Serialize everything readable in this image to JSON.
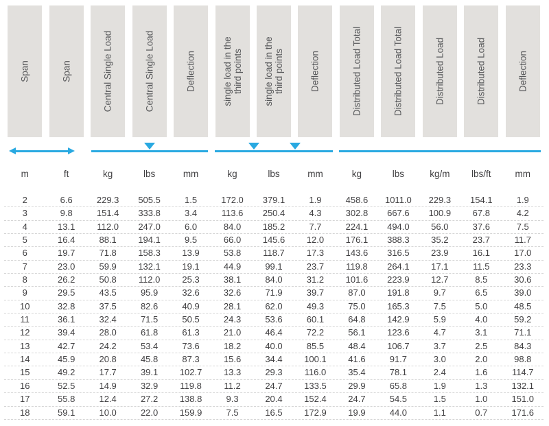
{
  "colors": {
    "accent_blue": "#29a9e1",
    "header_box_bg": "#e2e0dd",
    "header_text": "#57585a",
    "body_text": "#414042",
    "row_divider": "#d6d6d6"
  },
  "header": {
    "columns": [
      {
        "id": "span-m",
        "label": "Span"
      },
      {
        "id": "span-ft",
        "label": "Span"
      },
      {
        "id": "central-single-load-kg",
        "label": "Central Single Load"
      },
      {
        "id": "central-single-load-lbs",
        "label": "Central Single Load"
      },
      {
        "id": "central-deflection",
        "label": "Deflection"
      },
      {
        "id": "third-point-load-kg",
        "label": "single load in the\nthird points"
      },
      {
        "id": "third-point-load-lbs",
        "label": "single load in the\nthird points"
      },
      {
        "id": "third-point-deflection",
        "label": "Deflection"
      },
      {
        "id": "distributed-load-total-kg",
        "label": "Distributed Load Total"
      },
      {
        "id": "distributed-load-total-lbs",
        "label": "Distributed Load Total"
      },
      {
        "id": "distributed-load-kg-m",
        "label": "Distributed Load"
      },
      {
        "id": "distributed-load-lbs-ft",
        "label": "Distributed Load"
      },
      {
        "id": "distributed-deflection",
        "label": "Deflection"
      }
    ]
  },
  "diagram": {
    "span_arrow": "double-headed-arrow",
    "central_load_markers": 1,
    "third_point_load_markers": 2,
    "distributed_load_markers": 0
  },
  "units": [
    "m",
    "ft",
    "kg",
    "lbs",
    "mm",
    "kg",
    "lbs",
    "mm",
    "kg",
    "lbs",
    "kg/m",
    "lbs/ft",
    "mm"
  ],
  "table": {
    "rows": [
      [
        "2",
        "6.6",
        "229.3",
        "505.5",
        "1.5",
        "172.0",
        "379.1",
        "1.9",
        "458.6",
        "1011.0",
        "229.3",
        "154.1",
        "1.9"
      ],
      [
        "3",
        "9.8",
        "151.4",
        "333.8",
        "3.4",
        "113.6",
        "250.4",
        "4.3",
        "302.8",
        "667.6",
        "100.9",
        "67.8",
        "4.2"
      ],
      [
        "4",
        "13.1",
        "112.0",
        "247.0",
        "6.0",
        "84.0",
        "185.2",
        "7.7",
        "224.1",
        "494.0",
        "56.0",
        "37.6",
        "7.5"
      ],
      [
        "5",
        "16.4",
        "88.1",
        "194.1",
        "9.5",
        "66.0",
        "145.6",
        "12.0",
        "176.1",
        "388.3",
        "35.2",
        "23.7",
        "11.7"
      ],
      [
        "6",
        "19.7",
        "71.8",
        "158.3",
        "13.9",
        "53.8",
        "118.7",
        "17.3",
        "143.6",
        "316.5",
        "23.9",
        "16.1",
        "17.0"
      ],
      [
        "7",
        "23.0",
        "59.9",
        "132.1",
        "19.1",
        "44.9",
        "99.1",
        "23.7",
        "119.8",
        "264.1",
        "17.1",
        "11.5",
        "23.3"
      ],
      [
        "8",
        "26.2",
        "50.8",
        "112.0",
        "25.3",
        "38.1",
        "84.0",
        "31.2",
        "101.6",
        "223.9",
        "12.7",
        "8.5",
        "30.6"
      ],
      [
        "9",
        "29.5",
        "43.5",
        "95.9",
        "32.6",
        "32.6",
        "71.9",
        "39.7",
        "87.0",
        "191.8",
        "9.7",
        "6.5",
        "39.0"
      ],
      [
        "10",
        "32.8",
        "37.5",
        "82.6",
        "40.9",
        "28.1",
        "62.0",
        "49.3",
        "75.0",
        "165.3",
        "7.5",
        "5.0",
        "48.5"
      ],
      [
        "11",
        "36.1",
        "32.4",
        "71.5",
        "50.5",
        "24.3",
        "53.6",
        "60.1",
        "64.8",
        "142.9",
        "5.9",
        "4.0",
        "59.2"
      ],
      [
        "12",
        "39.4",
        "28.0",
        "61.8",
        "61.3",
        "21.0",
        "46.4",
        "72.2",
        "56.1",
        "123.6",
        "4.7",
        "3.1",
        "71.1"
      ],
      [
        "13",
        "42.7",
        "24.2",
        "53.4",
        "73.6",
        "18.2",
        "40.0",
        "85.5",
        "48.4",
        "106.7",
        "3.7",
        "2.5",
        "84.3"
      ],
      [
        "14",
        "45.9",
        "20.8",
        "45.8",
        "87.3",
        "15.6",
        "34.4",
        "100.1",
        "41.6",
        "91.7",
        "3.0",
        "2.0",
        "98.8"
      ],
      [
        "15",
        "49.2",
        "17.7",
        "39.1",
        "102.7",
        "13.3",
        "29.3",
        "116.0",
        "35.4",
        "78.1",
        "2.4",
        "1.6",
        "114.7"
      ],
      [
        "16",
        "52.5",
        "14.9",
        "32.9",
        "119.8",
        "11.2",
        "24.7",
        "133.5",
        "29.9",
        "65.8",
        "1.9",
        "1.3",
        "132.1"
      ],
      [
        "17",
        "55.8",
        "12.4",
        "27.2",
        "138.8",
        "9.3",
        "20.4",
        "152.4",
        "24.7",
        "54.5",
        "1.5",
        "1.0",
        "151.0"
      ],
      [
        "18",
        "59.1",
        "10.0",
        "22.0",
        "159.9",
        "7.5",
        "16.5",
        "172.9",
        "19.9",
        "44.0",
        "1.1",
        "0.7",
        "171.6"
      ]
    ]
  }
}
